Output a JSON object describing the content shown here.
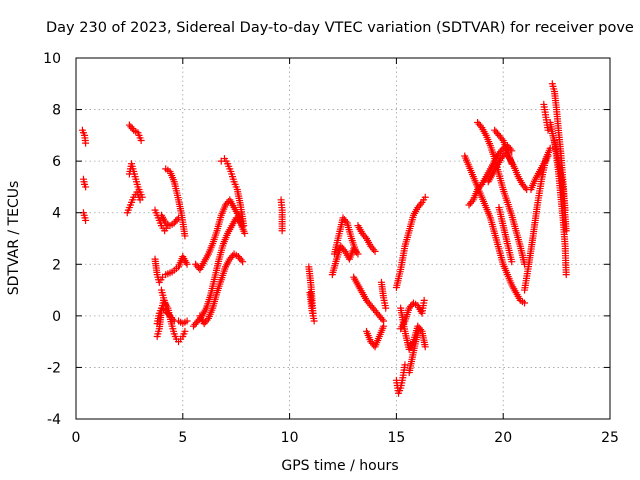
{
  "chart_data": {
    "type": "scatter",
    "title": "Day 230 of 2023, Sidereal Day-to-day VTEC variation (SDTVAR) for receiver pove",
    "xlabel": "GPS time / hours",
    "ylabel": "SDTVAR / TECUs",
    "xlim": [
      0,
      25
    ],
    "ylim": [
      -4,
      10
    ],
    "xticks": [
      0,
      5,
      10,
      15,
      20,
      25
    ],
    "xtick_labels": [
      "0",
      "5",
      "10",
      "15",
      "20",
      "25"
    ],
    "yticks": [
      -4,
      -2,
      0,
      2,
      4,
      6,
      8,
      10
    ],
    "ytick_labels": [
      "-4",
      "-2",
      "0",
      "2",
      "4",
      "6",
      "8",
      "10"
    ],
    "grid": true,
    "marker": "+",
    "color": "#ff0000",
    "segments": [
      {
        "name": "s1a",
        "x": [
          0.3,
          0.4,
          0.45
        ],
        "y": [
          7.2,
          7.0,
          6.7
        ]
      },
      {
        "name": "s1b",
        "x": [
          0.35,
          0.4,
          0.45
        ],
        "y": [
          5.3,
          5.1,
          5.0
        ]
      },
      {
        "name": "s1c",
        "x": [
          0.35,
          0.42,
          0.45
        ],
        "y": [
          4.0,
          3.8,
          3.7
        ]
      },
      {
        "name": "s2a",
        "x": [
          2.5,
          2.7,
          2.9,
          3.05
        ],
        "y": [
          7.4,
          7.2,
          7.1,
          6.8
        ]
      },
      {
        "name": "s2b",
        "x": [
          2.5,
          2.6,
          2.7,
          2.8,
          2.9,
          3.0,
          3.1
        ],
        "y": [
          5.5,
          5.9,
          5.6,
          5.3,
          5.0,
          4.8,
          4.6
        ]
      },
      {
        "name": "s2c",
        "x": [
          2.4,
          2.55,
          2.7,
          2.85,
          3.0
        ],
        "y": [
          4.0,
          4.3,
          4.6,
          4.8,
          4.5
        ]
      },
      {
        "name": "s3a",
        "x": [
          3.7,
          3.85,
          4.0,
          4.15,
          4.3
        ],
        "y": [
          4.1,
          3.8,
          3.5,
          3.3,
          3.5
        ]
      },
      {
        "name": "s3b",
        "x": [
          3.7,
          3.8,
          3.9,
          4.05,
          4.2,
          4.5,
          4.8,
          5.0,
          5.2
        ],
        "y": [
          2.2,
          1.6,
          1.3,
          1.5,
          1.6,
          1.7,
          1.9,
          2.3,
          2.0
        ]
      },
      {
        "name": "s3c",
        "x": [
          3.8,
          3.9,
          4.0,
          4.1,
          4.3,
          4.5,
          4.6,
          4.7,
          4.8,
          4.9,
          5.0,
          5.1
        ],
        "y": [
          -0.8,
          -0.5,
          0.2,
          0.6,
          0.3,
          -0.4,
          -0.7,
          -0.9,
          -1.0,
          -0.9,
          -0.8,
          -0.6
        ]
      },
      {
        "name": "s3d",
        "x": [
          3.8,
          3.9,
          4.0,
          4.2,
          4.4,
          4.6,
          4.8,
          5.0,
          5.2
        ],
        "y": [
          -0.3,
          0.1,
          0.3,
          0.2,
          0.0,
          -0.2,
          -0.2,
          -0.3,
          -0.2
        ]
      },
      {
        "name": "s3e",
        "x": [
          4.0,
          4.1,
          4.2,
          4.3
        ],
        "y": [
          1.0,
          0.7,
          0.4,
          0.1
        ]
      },
      {
        "name": "s4a",
        "x": [
          4.0,
          4.2,
          4.4,
          4.6,
          4.8
        ],
        "y": [
          3.9,
          3.6,
          3.5,
          3.6,
          3.8
        ]
      },
      {
        "name": "s4b",
        "x": [
          4.2,
          4.4,
          4.6,
          4.8,
          4.95,
          5.1
        ],
        "y": [
          5.7,
          5.6,
          5.2,
          4.5,
          3.9,
          3.1
        ]
      },
      {
        "name": "s5a",
        "x": [
          5.5,
          5.7,
          5.9,
          6.1,
          6.3,
          6.5,
          6.7,
          6.9,
          7.1,
          7.3,
          7.5,
          7.7,
          7.9
        ],
        "y": [
          -0.4,
          -0.2,
          0.0,
          0.3,
          0.8,
          1.5,
          2.2,
          2.8,
          3.2,
          3.5,
          3.8,
          3.6,
          3.2
        ]
      },
      {
        "name": "s5b",
        "x": [
          5.6,
          5.8,
          6.0,
          6.2,
          6.4,
          6.6,
          6.8,
          7.0,
          7.2,
          7.4,
          7.6,
          7.8
        ],
        "y": [
          2.0,
          1.8,
          2.1,
          2.4,
          2.8,
          3.3,
          3.9,
          4.3,
          4.5,
          4.2,
          3.9,
          3.5
        ]
      },
      {
        "name": "s5c",
        "x": [
          5.8,
          6.0,
          6.2,
          6.4,
          6.6,
          6.8,
          7.0,
          7.2,
          7.4,
          7.6,
          7.8
        ],
        "y": [
          0.0,
          -0.3,
          -0.1,
          0.3,
          0.9,
          1.4,
          1.9,
          2.2,
          2.4,
          2.3,
          2.1
        ]
      },
      {
        "name": "s5d",
        "x": [
          6.8,
          6.95,
          7.1,
          7.25,
          7.4,
          7.55,
          7.7,
          7.85
        ],
        "y": [
          6.0,
          6.1,
          5.9,
          5.6,
          5.2,
          4.9,
          4.3,
          3.5
        ]
      },
      {
        "name": "s6",
        "x": [
          9.6,
          9.65,
          9.65
        ],
        "y": [
          4.5,
          4.1,
          3.3
        ]
      },
      {
        "name": "s7a",
        "x": [
          10.9,
          11.0,
          11.05,
          11.1
        ],
        "y": [
          1.9,
          1.2,
          0.6,
          0.1
        ]
      },
      {
        "name": "s7b",
        "x": [
          10.95,
          11.05,
          11.15
        ],
        "y": [
          0.9,
          0.2,
          -0.2
        ]
      },
      {
        "name": "s8a",
        "x": [
          12.1,
          12.3,
          12.5,
          12.7,
          12.9,
          13.1
        ],
        "y": [
          2.4,
          3.1,
          3.8,
          3.6,
          3.0,
          2.5
        ]
      },
      {
        "name": "s8b",
        "x": [
          12.0,
          12.2,
          12.4,
          12.6,
          12.8,
          13.0,
          13.2
        ],
        "y": [
          1.6,
          2.2,
          2.7,
          2.5,
          2.2,
          2.6,
          2.4
        ]
      },
      {
        "name": "s8c",
        "x": [
          13.0,
          13.2,
          13.4,
          13.6,
          13.8,
          14.0,
          14.2,
          14.4
        ],
        "y": [
          1.5,
          1.2,
          0.9,
          0.6,
          0.4,
          0.2,
          0.0,
          -0.2
        ]
      },
      {
        "name": "s8d",
        "x": [
          13.2,
          13.4,
          13.6,
          13.8,
          14.0
        ],
        "y": [
          3.5,
          3.2,
          3.0,
          2.7,
          2.5
        ]
      },
      {
        "name": "s8e",
        "x": [
          13.6,
          13.8,
          14.0,
          14.2,
          14.4
        ],
        "y": [
          -0.6,
          -1.0,
          -1.2,
          -0.8,
          -0.4
        ]
      },
      {
        "name": "s8f",
        "x": [
          14.3,
          14.4,
          14.5
        ],
        "y": [
          1.3,
          0.7,
          0.3
        ]
      },
      {
        "name": "s9a",
        "x": [
          15.0,
          15.1,
          15.2,
          15.3,
          15.4
        ],
        "y": [
          -2.5,
          -3.0,
          -2.8,
          -2.4,
          -1.9
        ]
      },
      {
        "name": "s9b",
        "x": [
          15.2,
          15.4,
          15.6,
          15.8,
          16.0,
          16.2,
          16.3
        ],
        "y": [
          -0.5,
          -0.2,
          0.3,
          0.5,
          0.4,
          0.1,
          0.6
        ]
      },
      {
        "name": "s9c",
        "x": [
          15.2,
          15.4,
          15.6,
          15.8,
          16.0,
          16.2,
          16.35
        ],
        "y": [
          0.3,
          -0.6,
          -1.3,
          -1.0,
          -0.4,
          -0.6,
          -1.2
        ]
      },
      {
        "name": "s9d",
        "x": [
          15.0,
          15.2,
          15.4,
          15.6,
          15.8,
          16.0,
          16.2,
          16.35
        ],
        "y": [
          1.1,
          1.8,
          2.7,
          3.3,
          3.9,
          4.2,
          4.4,
          4.6
        ]
      },
      {
        "name": "s9e",
        "x": [
          15.6,
          15.75,
          15.9,
          16.05
        ],
        "y": [
          -2.2,
          -1.6,
          -1.0,
          -0.5
        ]
      },
      {
        "name": "s10a",
        "x": [
          18.2,
          18.4,
          18.6,
          18.8,
          19.0,
          19.2,
          19.4,
          19.6,
          19.8,
          20.0,
          20.2,
          20.4,
          20.6,
          20.8,
          21.0
        ],
        "y": [
          6.2,
          5.8,
          5.4,
          5.0,
          4.6,
          4.2,
          3.8,
          3.2,
          2.6,
          2.0,
          1.6,
          1.2,
          0.9,
          0.6,
          0.5
        ]
      },
      {
        "name": "s10b",
        "x": [
          18.8,
          19.0,
          19.2,
          19.4,
          19.6,
          19.8,
          20.0,
          20.2,
          20.4,
          20.6,
          20.8,
          21.0
        ],
        "y": [
          7.5,
          7.3,
          7.0,
          6.6,
          6.1,
          5.5,
          4.9,
          4.4,
          3.9,
          3.3,
          2.7,
          2.0
        ]
      },
      {
        "name": "s10c",
        "x": [
          18.4,
          18.6,
          18.8,
          19.0,
          19.2,
          19.4,
          19.6,
          19.8,
          20.0,
          20.2,
          20.4
        ],
        "y": [
          4.3,
          4.5,
          4.9,
          5.1,
          5.4,
          5.7,
          6.0,
          6.3,
          6.5,
          6.6,
          6.4
        ]
      },
      {
        "name": "s10d",
        "x": [
          19.3,
          19.5,
          19.7,
          19.9,
          20.1,
          20.3,
          20.5,
          20.7,
          20.9,
          21.1
        ],
        "y": [
          5.2,
          5.5,
          5.8,
          6.1,
          6.3,
          6.1,
          5.8,
          5.4,
          5.1,
          4.9
        ]
      },
      {
        "name": "s10e",
        "x": [
          19.6,
          19.8,
          20.0,
          20.2,
          20.4
        ],
        "y": [
          7.2,
          7.0,
          6.8,
          6.4,
          5.9
        ]
      },
      {
        "name": "s10f",
        "x": [
          19.8,
          20.0,
          20.2,
          20.4
        ],
        "y": [
          4.2,
          3.5,
          2.8,
          2.1
        ]
      },
      {
        "name": "s11a",
        "x": [
          21.0,
          21.2,
          21.4,
          21.6,
          21.8,
          22.0,
          22.2
        ],
        "y": [
          1.0,
          2.0,
          3.1,
          4.3,
          5.3,
          6.1,
          6.5
        ]
      },
      {
        "name": "s11b",
        "x": [
          21.3,
          21.5,
          21.7,
          21.9,
          22.1
        ],
        "y": [
          4.9,
          5.3,
          5.6,
          5.9,
          6.2
        ]
      },
      {
        "name": "s11c",
        "x": [
          21.9,
          22.0,
          22.1
        ],
        "y": [
          8.2,
          7.7,
          7.2
        ]
      },
      {
        "name": "s11d",
        "x": [
          22.3,
          22.4,
          22.5,
          22.6,
          22.7,
          22.8,
          22.9
        ],
        "y": [
          9.0,
          8.7,
          8.0,
          7.1,
          6.3,
          5.2,
          4.1
        ]
      },
      {
        "name": "s11e",
        "x": [
          22.4,
          22.5,
          22.6,
          22.7,
          22.8,
          22.9,
          22.95
        ],
        "y": [
          6.8,
          6.2,
          5.5,
          4.6,
          3.8,
          2.7,
          1.6
        ]
      },
      {
        "name": "s11f",
        "x": [
          22.2,
          22.35,
          22.5,
          22.65,
          22.8,
          22.95
        ],
        "y": [
          7.5,
          6.9,
          6.4,
          5.7,
          4.9,
          3.3
        ]
      }
    ]
  }
}
